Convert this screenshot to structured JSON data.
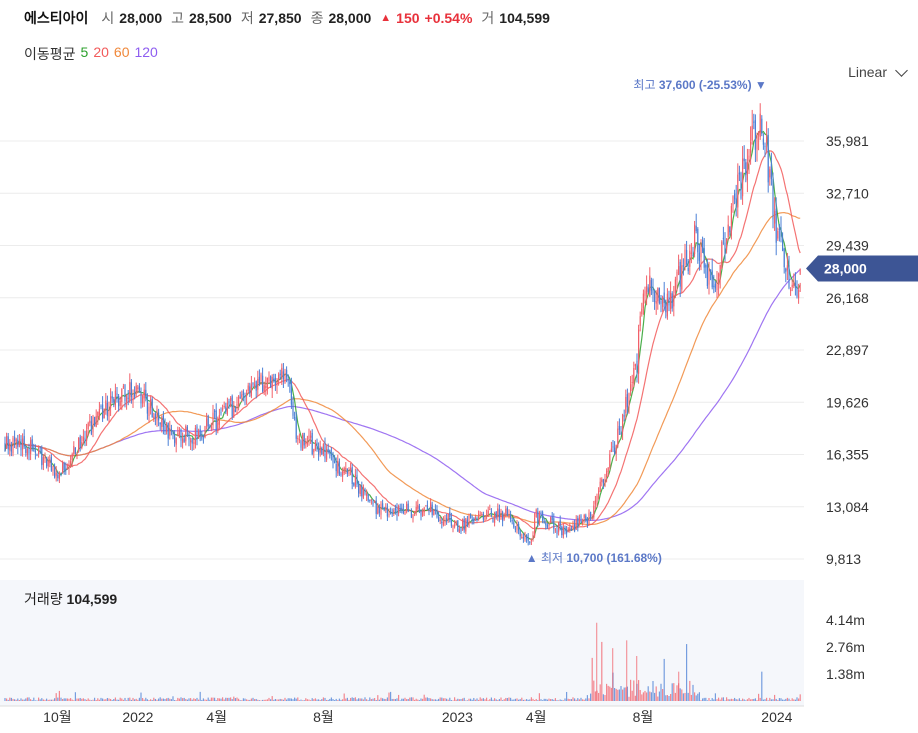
{
  "header": {
    "name": "에스티아이",
    "open_label": "시",
    "open": "28,000",
    "high_label": "고",
    "high": "28,500",
    "low_label": "저",
    "low": "27,850",
    "close_label": "종",
    "close": "28,000",
    "change_icon": "triangle-up",
    "change": "150",
    "change_pct": "+0.54%",
    "volume_label": "거",
    "volume": "104,599"
  },
  "ma_legend": {
    "title": "이동평균",
    "periods": [
      {
        "label": "5",
        "color": "#2ca02c"
      },
      {
        "label": "20",
        "color": "#f25b5b"
      },
      {
        "label": "60",
        "color": "#f0883a"
      },
      {
        "label": "120",
        "color": "#8e5df0"
      }
    ]
  },
  "scale": {
    "label": "Linear"
  },
  "colors": {
    "up": "#f2606a",
    "down": "#4a7fd6",
    "badge": "#3d5595",
    "annotation": "#5b78c7"
  },
  "chart_data": {
    "type": "candlestick",
    "y_ticks": [
      "35,981",
      "32,710",
      "29,439",
      "26,168",
      "22,897",
      "19,626",
      "16,355",
      "13,084",
      "9,813"
    ],
    "y_tick_values": [
      35981,
      32710,
      29439,
      26168,
      22897,
      19626,
      16355,
      13084,
      9813
    ],
    "x_ticks": [
      "10월",
      "2022",
      "4월",
      "8월",
      "2023",
      "4월",
      "8월",
      "2024"
    ],
    "x_tick_dates": [
      "2021-10",
      "2022-01",
      "2022-04",
      "2022-08",
      "2023-01",
      "2023-04",
      "2023-08",
      "2024-01"
    ],
    "date_range": [
      "2021-08",
      "2024-02"
    ],
    "current_price": "28,000",
    "high_annotation": {
      "label": "최고",
      "value": "37,600 (-25.53%)",
      "price": 37600
    },
    "low_annotation": {
      "label": "최저",
      "value": "10,700 (161.68%)",
      "price": 10700
    },
    "volume": {
      "label": "거래량",
      "value": "104,599",
      "y_ticks": [
        "4.14m",
        "2.76m",
        "1.38m"
      ],
      "y_tick_values": [
        4140000,
        2760000,
        1380000
      ]
    },
    "approx_price_path": [
      [
        "2021-08",
        17200
      ],
      [
        "2021-09",
        16800
      ],
      [
        "2021-10",
        15000
      ],
      [
        "2021-11",
        17500
      ],
      [
        "2021-12",
        19500
      ],
      [
        "2022-01",
        20500
      ],
      [
        "2022-02",
        17800
      ],
      [
        "2022-03",
        17500
      ],
      [
        "2022-04",
        18500
      ],
      [
        "2022-05",
        20000
      ],
      [
        "2022-06",
        21000
      ],
      [
        "2022-06-20",
        21500
      ],
      [
        "2022-07",
        17500
      ],
      [
        "2022-08",
        16500
      ],
      [
        "2022-09",
        15000
      ],
      [
        "2022-10",
        13000
      ],
      [
        "2022-11",
        12800
      ],
      [
        "2022-12",
        13000
      ],
      [
        "2023-01",
        11800
      ],
      [
        "2023-02",
        12500
      ],
      [
        "2023-03",
        12600
      ],
      [
        "2023-03-25",
        10700
      ],
      [
        "2023-04",
        12500
      ],
      [
        "2023-05",
        11600
      ],
      [
        "2023-06",
        12300
      ],
      [
        "2023-07",
        17000
      ],
      [
        "2023-07-25",
        22000
      ],
      [
        "2023-08",
        27000
      ],
      [
        "2023-09",
        26000
      ],
      [
        "2023-10",
        30000
      ],
      [
        "2023-10-20",
        26500
      ],
      [
        "2023-11",
        29500
      ],
      [
        "2023-12",
        35500
      ],
      [
        "2023-12-15",
        37600
      ],
      [
        "2024-01",
        30000
      ],
      [
        "2024-01-20",
        26500
      ],
      [
        "2024-02",
        28000
      ]
    ]
  }
}
